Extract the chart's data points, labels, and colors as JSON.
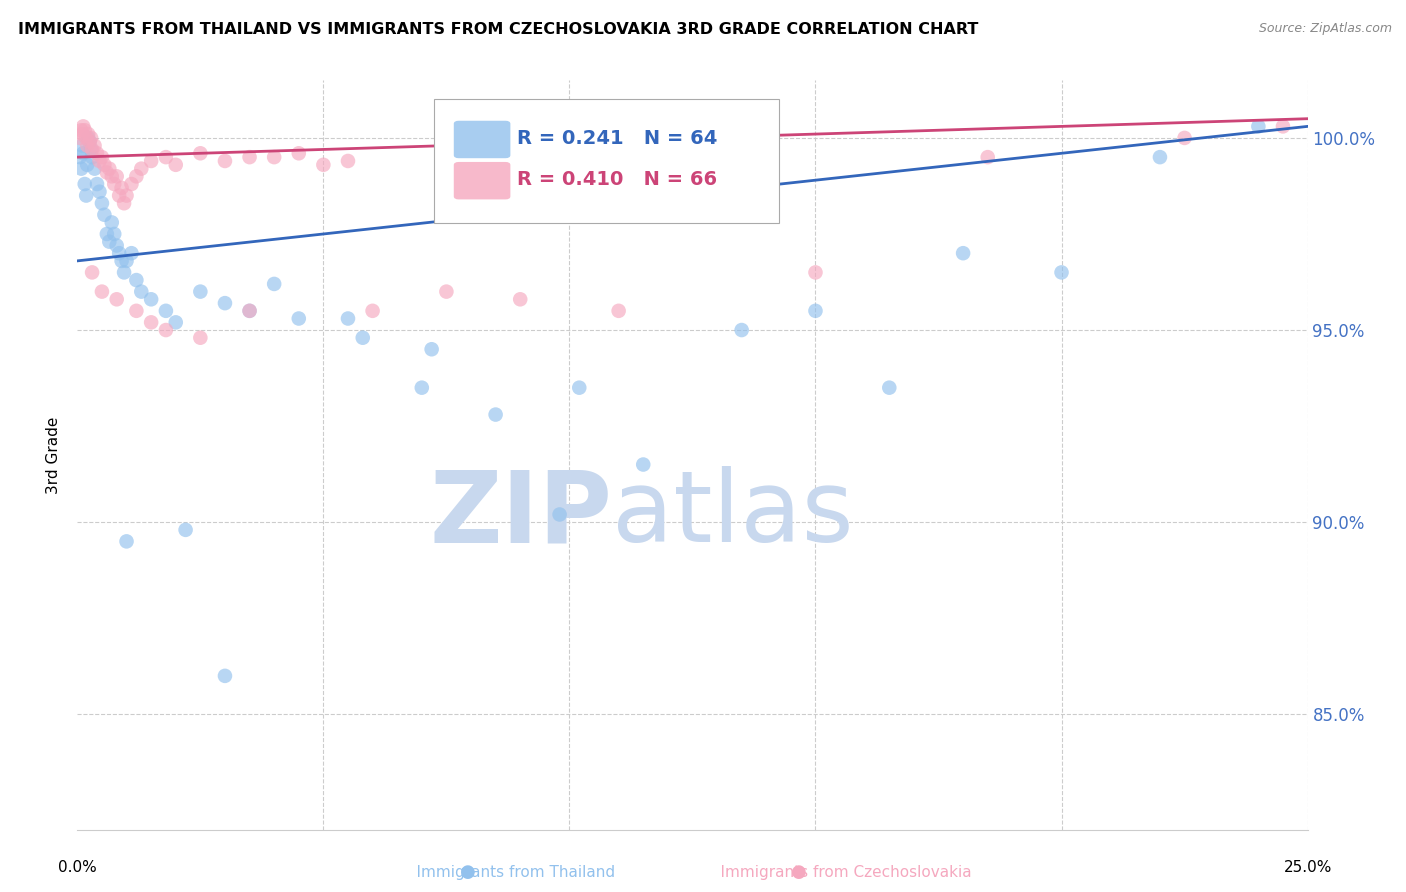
{
  "title": "IMMIGRANTS FROM THAILAND VS IMMIGRANTS FROM CZECHOSLOVAKIA 3RD GRADE CORRELATION CHART",
  "source": "Source: ZipAtlas.com",
  "ylabel": "3rd Grade",
  "xlim": [
    0.0,
    25.0
  ],
  "ylim": [
    82.0,
    101.5
  ],
  "yticks": [
    85.0,
    90.0,
    95.0,
    100.0
  ],
  "ytick_labels": [
    "85.0%",
    "90.0%",
    "95.0%",
    "100.0%"
  ],
  "legend_blue_r": "R = 0.241",
  "legend_blue_n": "N = 64",
  "legend_pink_r": "R = 0.410",
  "legend_pink_n": "N = 66",
  "blue_color": "#92C1ED",
  "pink_color": "#F5A8BF",
  "blue_line_color": "#3366BB",
  "pink_line_color": "#CC4477",
  "watermark_zip_color": "#C8D8EE",
  "watermark_atlas_color": "#C8D8EE",
  "blue_line_x0": 0.0,
  "blue_line_y0": 96.8,
  "blue_line_x1": 25.0,
  "blue_line_y1": 100.3,
  "pink_line_x0": 0.0,
  "pink_line_y0": 99.5,
  "pink_line_x1": 25.0,
  "pink_line_y1": 100.5,
  "thailand_points": [
    [
      0.05,
      99.5
    ],
    [
      0.08,
      99.2
    ],
    [
      0.1,
      99.8
    ],
    [
      0.12,
      99.6
    ],
    [
      0.15,
      98.8
    ],
    [
      0.18,
      98.5
    ],
    [
      0.2,
      99.3
    ],
    [
      0.22,
      100.0
    ],
    [
      0.25,
      99.9
    ],
    [
      0.28,
      99.7
    ],
    [
      0.3,
      99.5
    ],
    [
      0.35,
      99.2
    ],
    [
      0.4,
      98.8
    ],
    [
      0.45,
      98.6
    ],
    [
      0.5,
      98.3
    ],
    [
      0.55,
      98.0
    ],
    [
      0.6,
      97.5
    ],
    [
      0.65,
      97.3
    ],
    [
      0.7,
      97.8
    ],
    [
      0.75,
      97.5
    ],
    [
      0.8,
      97.2
    ],
    [
      0.85,
      97.0
    ],
    [
      0.9,
      96.8
    ],
    [
      0.95,
      96.5
    ],
    [
      1.0,
      96.8
    ],
    [
      1.1,
      97.0
    ],
    [
      1.2,
      96.3
    ],
    [
      1.3,
      96.0
    ],
    [
      1.5,
      95.8
    ],
    [
      1.8,
      95.5
    ],
    [
      2.0,
      95.2
    ],
    [
      2.5,
      96.0
    ],
    [
      3.0,
      95.7
    ],
    [
      3.5,
      95.5
    ],
    [
      4.0,
      96.2
    ],
    [
      4.5,
      95.3
    ],
    [
      5.5,
      95.3
    ],
    [
      5.8,
      94.8
    ],
    [
      7.0,
      93.5
    ],
    [
      7.2,
      94.5
    ],
    [
      8.5,
      92.8
    ],
    [
      9.8,
      90.2
    ],
    [
      10.2,
      93.5
    ],
    [
      11.5,
      91.5
    ],
    [
      13.5,
      95.0
    ],
    [
      15.0,
      95.5
    ],
    [
      16.5,
      93.5
    ],
    [
      18.0,
      97.0
    ],
    [
      20.0,
      96.5
    ],
    [
      22.0,
      99.5
    ],
    [
      24.0,
      100.3
    ],
    [
      1.0,
      89.5
    ],
    [
      2.2,
      89.8
    ],
    [
      3.0,
      86.0
    ]
  ],
  "czechoslovakia_points": [
    [
      0.05,
      100.0
    ],
    [
      0.08,
      100.2
    ],
    [
      0.1,
      100.1
    ],
    [
      0.12,
      100.3
    ],
    [
      0.15,
      100.2
    ],
    [
      0.18,
      100.0
    ],
    [
      0.2,
      99.8
    ],
    [
      0.22,
      100.1
    ],
    [
      0.25,
      99.9
    ],
    [
      0.28,
      100.0
    ],
    [
      0.3,
      99.7
    ],
    [
      0.35,
      99.8
    ],
    [
      0.4,
      99.6
    ],
    [
      0.45,
      99.4
    ],
    [
      0.5,
      99.5
    ],
    [
      0.55,
      99.3
    ],
    [
      0.6,
      99.1
    ],
    [
      0.65,
      99.2
    ],
    [
      0.7,
      99.0
    ],
    [
      0.75,
      98.8
    ],
    [
      0.8,
      99.0
    ],
    [
      0.85,
      98.5
    ],
    [
      0.9,
      98.7
    ],
    [
      0.95,
      98.3
    ],
    [
      1.0,
      98.5
    ],
    [
      1.1,
      98.8
    ],
    [
      1.2,
      99.0
    ],
    [
      1.3,
      99.2
    ],
    [
      1.5,
      99.4
    ],
    [
      1.8,
      99.5
    ],
    [
      2.0,
      99.3
    ],
    [
      2.5,
      99.6
    ],
    [
      3.0,
      99.4
    ],
    [
      3.5,
      99.5
    ],
    [
      4.0,
      99.5
    ],
    [
      4.5,
      99.6
    ],
    [
      5.0,
      99.3
    ],
    [
      5.5,
      99.4
    ],
    [
      0.3,
      96.5
    ],
    [
      0.5,
      96.0
    ],
    [
      0.8,
      95.8
    ],
    [
      1.2,
      95.5
    ],
    [
      1.5,
      95.2
    ],
    [
      1.8,
      95.0
    ],
    [
      2.5,
      94.8
    ],
    [
      3.5,
      95.5
    ],
    [
      6.0,
      95.5
    ],
    [
      7.5,
      96.0
    ],
    [
      9.0,
      95.8
    ],
    [
      11.0,
      95.5
    ],
    [
      15.0,
      96.5
    ],
    [
      18.5,
      99.5
    ],
    [
      22.5,
      100.0
    ],
    [
      24.5,
      100.3
    ]
  ]
}
